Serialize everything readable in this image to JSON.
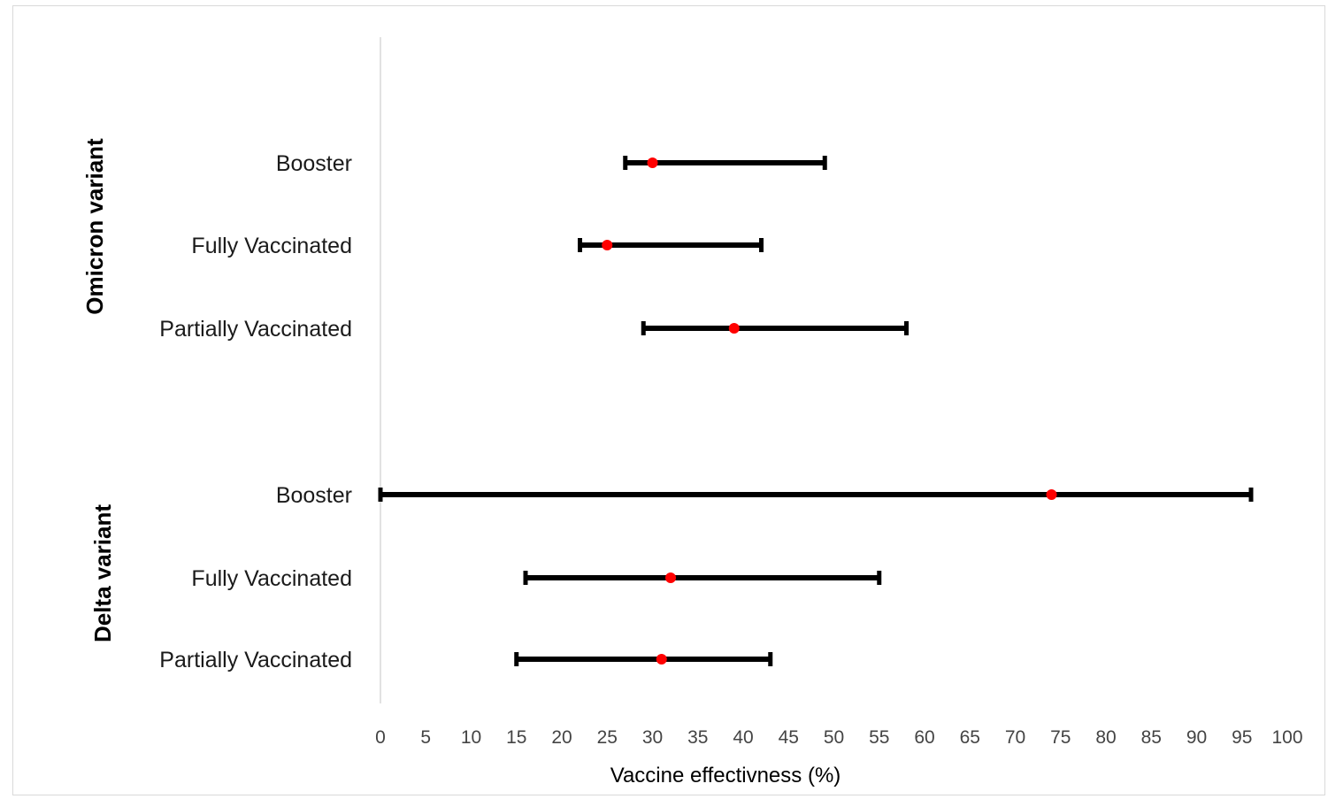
{
  "chart_data": {
    "type": "forest",
    "xlabel": "Vaccine effectivness (%)",
    "xlim": [
      0,
      100
    ],
    "xticks": [
      0,
      5,
      10,
      15,
      20,
      25,
      30,
      35,
      40,
      45,
      50,
      55,
      60,
      65,
      70,
      75,
      80,
      85,
      90,
      95,
      100
    ],
    "groups": [
      {
        "label": "Omicron variant",
        "rows": [
          {
            "label": "Booster",
            "estimate": 30,
            "lower": 27,
            "upper": 49
          },
          {
            "label": "Fully Vaccinated",
            "estimate": 25,
            "lower": 22,
            "upper": 42
          },
          {
            "label": "Partially Vaccinated",
            "estimate": 39,
            "lower": 29,
            "upper": 58
          }
        ]
      },
      {
        "label": "Delta variant",
        "rows": [
          {
            "label": "Booster",
            "estimate": 74,
            "lower": 0,
            "upper": 96
          },
          {
            "label": "Fully Vaccinated",
            "estimate": 32,
            "lower": 16,
            "upper": 55
          },
          {
            "label": "Partially Vaccinated",
            "estimate": 31,
            "lower": 15,
            "upper": 43
          }
        ]
      }
    ],
    "colors": {
      "interval": "#000000",
      "point": "#ff0000",
      "axis": "#d9d9d9"
    }
  }
}
